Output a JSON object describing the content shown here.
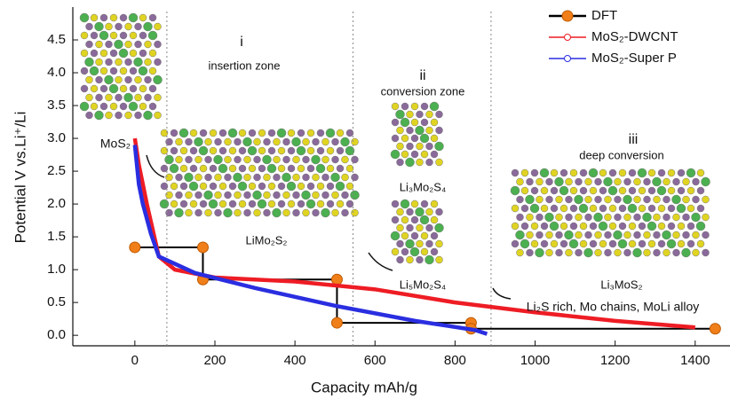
{
  "chart_data": {
    "type": "line",
    "x_label": "Capacity mAh/g",
    "y_label": "Potential V vs.Li⁺/Li",
    "xlim": [
      -155,
      1487
    ],
    "ylim": [
      -0.16,
      5.0
    ],
    "xticks": [
      0,
      200,
      400,
      600,
      800,
      1000,
      1200,
      1400
    ],
    "yticks": [
      {
        "value": 0,
        "label": "0.0"
      },
      0.5,
      {
        "value": 1,
        "label": "1.0"
      },
      1.5,
      {
        "value": 2,
        "label": "2.0"
      },
      2.5,
      {
        "value": 3,
        "label": "3.0"
      },
      3.5,
      {
        "value": 4,
        "label": "4.0"
      },
      4.5
    ],
    "zone_boundaries": [
      80,
      545,
      890
    ],
    "series": [
      {
        "name": "DFT",
        "color": "#000000",
        "marker_color": "#f07f1a",
        "x": [
          0,
          170,
          170,
          505,
          505,
          840,
          840,
          1450
        ],
        "values": [
          1.34,
          1.34,
          0.85,
          0.85,
          0.19,
          0.19,
          0.1,
          0.1
        ]
      },
      {
        "name": "MoS₂-DWCNT",
        "color": "#ee1c24",
        "x": [
          0,
          10,
          20,
          30,
          45,
          60,
          100,
          200,
          400,
          600,
          800,
          1000,
          1200,
          1400
        ],
        "values": [
          3.0,
          2.6,
          2.3,
          2.0,
          1.6,
          1.2,
          1.0,
          0.88,
          0.82,
          0.7,
          0.5,
          0.35,
          0.22,
          0.12
        ]
      },
      {
        "name": "MoS₂-Super P",
        "color": "#2a2ee0",
        "x": [
          0,
          10,
          20,
          40,
          60,
          150,
          300,
          500,
          700,
          850,
          880
        ],
        "values": [
          2.9,
          2.3,
          2.0,
          1.55,
          1.2,
          0.95,
          0.72,
          0.45,
          0.22,
          0.08,
          0.02
        ]
      }
    ],
    "annotations": [
      "i",
      "insertion zone",
      "ii",
      "conversion zone",
      "iii",
      "deep conversion",
      "MoS₂",
      "LiMo₂S₂",
      "Li₃Mo₂S₄",
      "Li₅Mo₂S₄",
      "Li₃MoS₂",
      "Li₂S rich, Mo chains, MoLi alloy"
    ]
  }
}
